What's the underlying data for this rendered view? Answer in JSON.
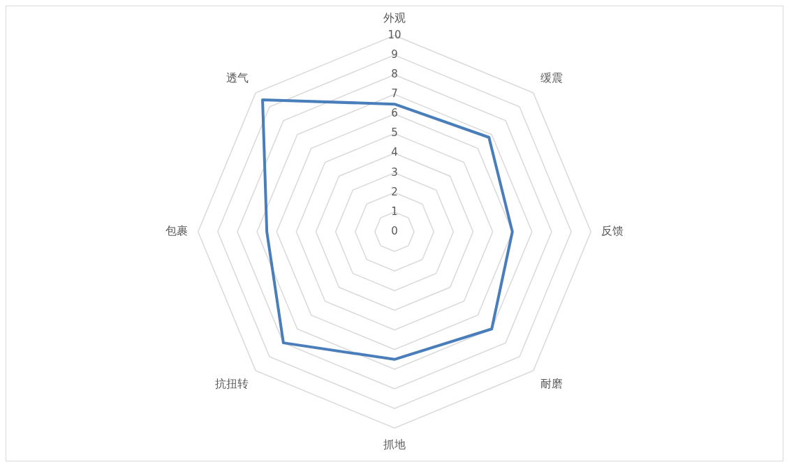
{
  "chart_data": {
    "type": "radar",
    "categories": [
      "外观",
      "缓震",
      "反馈",
      "耐磨",
      "抓地",
      "抗扭转",
      "包裹",
      "透气"
    ],
    "series": [
      {
        "color": "#4a7ebb",
        "values": [
          6.5,
          6.8,
          6,
          7,
          6.5,
          8,
          6.5,
          9.5
        ]
      }
    ],
    "ylim": [
      0,
      10
    ],
    "yticks": [
      0,
      1,
      2,
      3,
      4,
      5,
      6,
      7,
      8,
      9,
      10
    ],
    "grid": true,
    "legend": false,
    "marker": "none"
  }
}
